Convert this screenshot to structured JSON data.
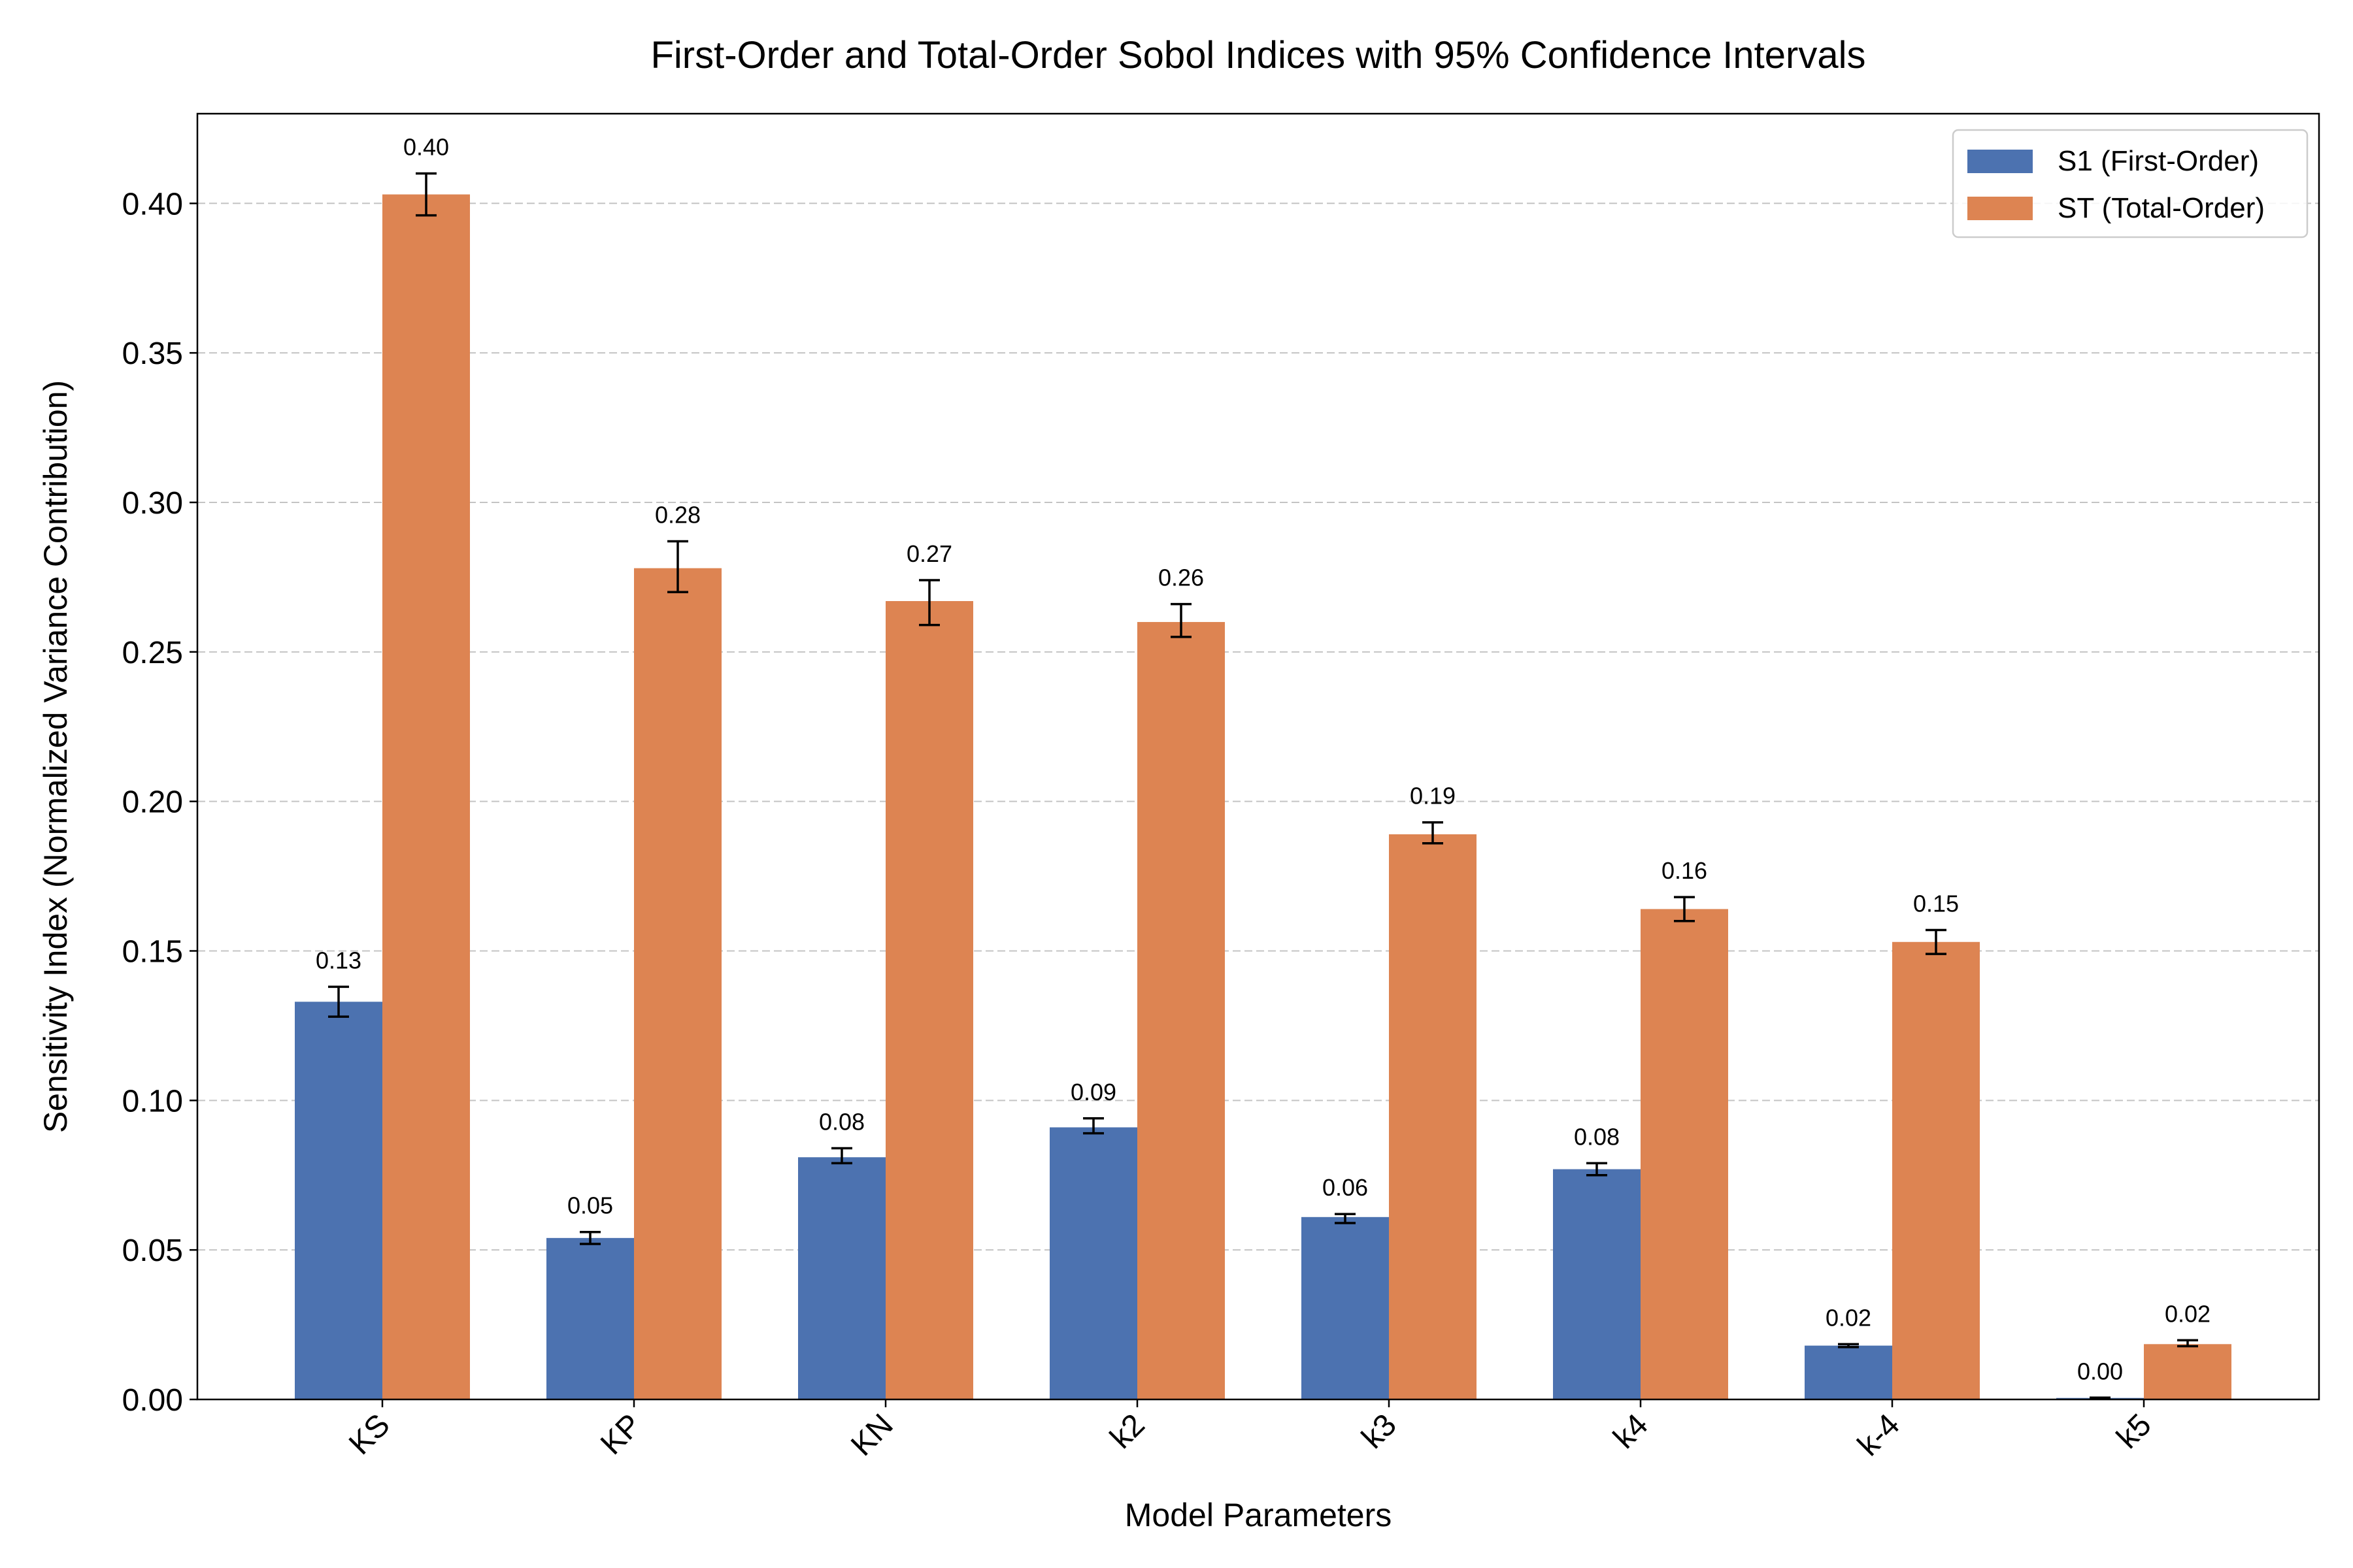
{
  "chart_data": {
    "type": "bar",
    "title": "First-Order and Total-Order Sobol Indices with 95% Confidence Intervals",
    "xlabel": "Model Parameters",
    "ylabel": "Sensitivity Index (Normalized Variance Contribution)",
    "categories": [
      "KS",
      "KP",
      "KN",
      "k2",
      "k3",
      "k4",
      "k-4",
      "k5"
    ],
    "ylim": [
      0,
      0.43
    ],
    "yticks": [
      "0.00",
      "0.05",
      "0.10",
      "0.15",
      "0.20",
      "0.25",
      "0.30",
      "0.35",
      "0.40"
    ],
    "grid": "y-dashed",
    "legend_position": "top-right",
    "series": [
      {
        "name": "S1 (First-Order)",
        "color": "#4c72b0",
        "values": [
          0.133,
          0.054,
          0.081,
          0.091,
          0.061,
          0.077,
          0.018,
          0.0005
        ],
        "ci_low": [
          0.128,
          0.052,
          0.079,
          0.089,
          0.059,
          0.075,
          0.0175,
          0.0004
        ],
        "ci_high": [
          0.138,
          0.056,
          0.084,
          0.094,
          0.062,
          0.079,
          0.0185,
          0.0006
        ],
        "labels": [
          "0.13",
          "0.05",
          "0.08",
          "0.09",
          "0.06",
          "0.08",
          "0.02",
          "0.00"
        ]
      },
      {
        "name": "ST (Total-Order)",
        "color": "#dd8452",
        "values": [
          0.403,
          0.278,
          0.267,
          0.26,
          0.189,
          0.164,
          0.153,
          0.0185
        ],
        "ci_low": [
          0.396,
          0.27,
          0.259,
          0.255,
          0.186,
          0.16,
          0.149,
          0.0178
        ],
        "ci_high": [
          0.41,
          0.287,
          0.274,
          0.266,
          0.193,
          0.168,
          0.157,
          0.0198
        ],
        "labels": [
          "0.40",
          "0.28",
          "0.27",
          "0.26",
          "0.19",
          "0.16",
          "0.15",
          "0.02"
        ]
      }
    ]
  }
}
